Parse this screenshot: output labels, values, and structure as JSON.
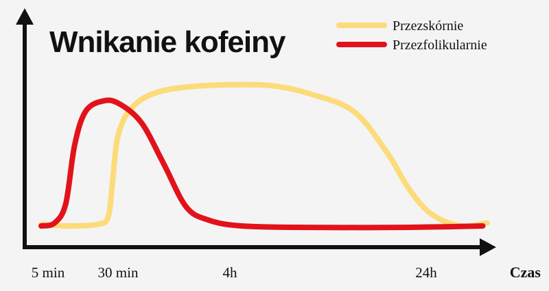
{
  "chart_data": {
    "type": "line",
    "title": "Wnikanie kofeiny",
    "xlabel": "Czas",
    "ylabel": "",
    "x_ticks": [
      "5 min",
      "30 min",
      "4h",
      "24h"
    ],
    "grid": false,
    "legend_position": "top-right",
    "series": [
      {
        "name": "Przezskórnie",
        "color": "#fcdb7a",
        "points": [
          [
            0,
            0.01
          ],
          [
            0.12,
            0.0
          ],
          [
            0.25,
            0.01
          ],
          [
            0.3,
            0.06
          ],
          [
            0.32,
            0.3
          ],
          [
            0.34,
            0.58
          ],
          [
            0.38,
            0.75
          ],
          [
            0.45,
            0.86
          ],
          [
            0.55,
            0.92
          ],
          [
            0.7,
            0.95
          ],
          [
            0.9,
            0.96
          ],
          [
            1.05,
            0.95
          ],
          [
            1.2,
            0.9
          ],
          [
            1.4,
            0.78
          ],
          [
            1.55,
            0.5
          ],
          [
            1.65,
            0.25
          ],
          [
            1.75,
            0.08
          ],
          [
            1.88,
            0.0
          ],
          [
            2.0,
            0.02
          ]
        ]
      },
      {
        "name": "Przezfolikularnie",
        "color": "#e2121b",
        "points": [
          [
            0,
            0.0
          ],
          [
            0.06,
            0.02
          ],
          [
            0.11,
            0.15
          ],
          [
            0.15,
            0.55
          ],
          [
            0.2,
            0.78
          ],
          [
            0.28,
            0.85
          ],
          [
            0.35,
            0.83
          ],
          [
            0.45,
            0.7
          ],
          [
            0.55,
            0.42
          ],
          [
            0.65,
            0.13
          ],
          [
            0.75,
            0.04
          ],
          [
            0.9,
            0.0
          ],
          [
            1.2,
            -0.01
          ],
          [
            1.6,
            -0.01
          ],
          [
            1.98,
            0.0
          ]
        ]
      }
    ]
  }
}
